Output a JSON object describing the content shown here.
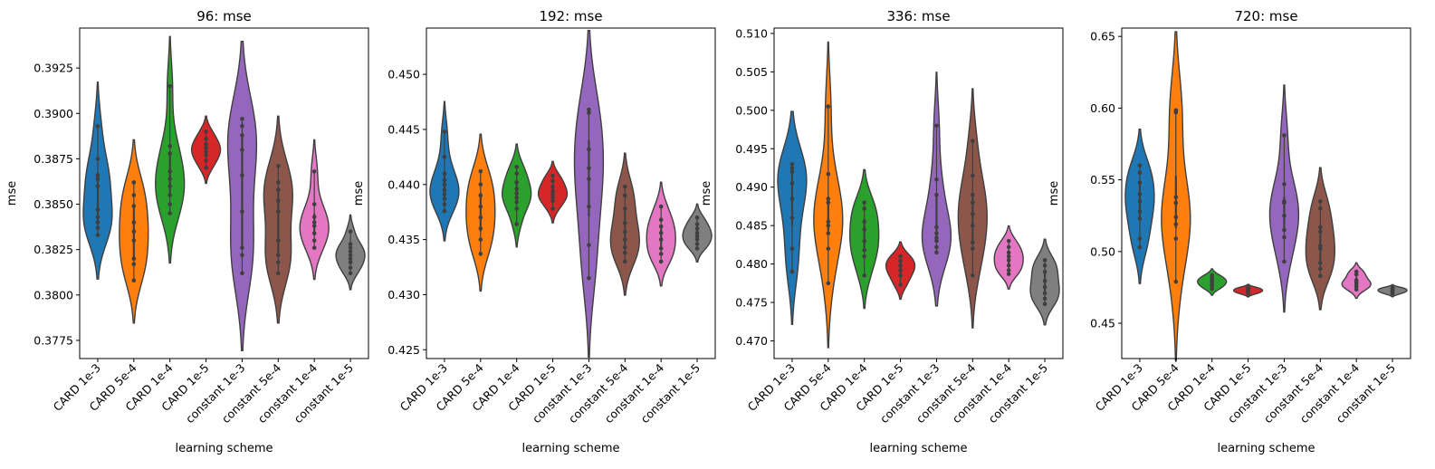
{
  "chart_data": [
    {
      "type": "violin",
      "title": "96: mse",
      "xlabel": "learning scheme",
      "ylabel": "mse",
      "ylim": [
        0.3765,
        0.3947
      ],
      "yticks": [
        0.3775,
        0.38,
        0.3825,
        0.385,
        0.3875,
        0.39,
        0.3925
      ],
      "ytick_labels": [
        "0.3775",
        "0.3800",
        "0.3825",
        "0.3850",
        "0.3875",
        "0.3900",
        "0.3925"
      ],
      "categories": [
        "CARD 1e-3",
        "CARD 5e-4",
        "CARD 1e-4",
        "CARD 1e-5",
        "constant 1e-3",
        "constant 5e-4",
        "constant 1e-4",
        "constant 1e-5"
      ],
      "colors": [
        "#1f77b4",
        "#ff7f0e",
        "#2ca02c",
        "#d62728",
        "#9467bd",
        "#8c564b",
        "#e377c2",
        "#7f7f7f"
      ],
      "series": [
        {
          "name": "CARD 1e-3",
          "points": [
            0.3833,
            0.3837,
            0.384,
            0.3843,
            0.3847,
            0.386,
            0.3864,
            0.3866,
            0.3875,
            0.3893
          ]
        },
        {
          "name": "CARD 5e-4",
          "points": [
            0.3808,
            0.3817,
            0.382,
            0.383,
            0.3835,
            0.384,
            0.3849,
            0.3855,
            0.3862
          ]
        },
        {
          "name": "CARD 1e-4",
          "points": [
            0.3845,
            0.385,
            0.3855,
            0.386,
            0.3864,
            0.3868,
            0.3878,
            0.3882,
            0.3915
          ]
        },
        {
          "name": "CARD 1e-5",
          "points": [
            0.387,
            0.3874,
            0.3877,
            0.3879,
            0.3881,
            0.3883,
            0.3886,
            0.389
          ]
        },
        {
          "name": "constant 1e-3",
          "points": [
            0.3812,
            0.3822,
            0.3826,
            0.3846,
            0.3866,
            0.388,
            0.3888,
            0.3893,
            0.3897
          ]
        },
        {
          "name": "constant 5e-4",
          "points": [
            0.3812,
            0.3818,
            0.3822,
            0.383,
            0.3846,
            0.3852,
            0.3858,
            0.3862,
            0.3871
          ]
        },
        {
          "name": "constant 1e-4",
          "points": [
            0.3826,
            0.383,
            0.3834,
            0.3838,
            0.384,
            0.3843,
            0.385,
            0.3868
          ]
        },
        {
          "name": "constant 1e-5",
          "points": [
            0.3812,
            0.3815,
            0.3818,
            0.382,
            0.3822,
            0.3824,
            0.3826,
            0.3828,
            0.3835
          ]
        }
      ]
    },
    {
      "type": "violin",
      "title": "192: mse",
      "xlabel": "learning scheme",
      "ylabel": "mse",
      "ylim": [
        0.4242,
        0.4542
      ],
      "yticks": [
        0.425,
        0.43,
        0.435,
        0.44,
        0.445,
        0.45
      ],
      "ytick_labels": [
        "0.425",
        "0.430",
        "0.435",
        "0.440",
        "0.445",
        "0.450"
      ],
      "categories": [
        "CARD 1e-3",
        "CARD 5e-4",
        "CARD 1e-4",
        "CARD 1e-5",
        "constant 1e-3",
        "constant 5e-4",
        "constant 1e-4",
        "constant 1e-5"
      ],
      "colors": [
        "#1f77b4",
        "#ff7f0e",
        "#2ca02c",
        "#d62728",
        "#9467bd",
        "#8c564b",
        "#e377c2",
        "#7f7f7f"
      ],
      "series": [
        {
          "name": "CARD 1e-3",
          "points": [
            0.4376,
            0.4382,
            0.4387,
            0.4391,
            0.4395,
            0.44,
            0.4404,
            0.441,
            0.4425,
            0.4448
          ]
        },
        {
          "name": "CARD 5e-4",
          "points": [
            0.4337,
            0.435,
            0.436,
            0.437,
            0.438,
            0.439,
            0.44,
            0.4412
          ]
        },
        {
          "name": "CARD 1e-4",
          "points": [
            0.4364,
            0.4378,
            0.4384,
            0.4388,
            0.4392,
            0.4396,
            0.4402,
            0.441,
            0.4416
          ]
        },
        {
          "name": "CARD 1e-5",
          "points": [
            0.4378,
            0.4385,
            0.4388,
            0.4391,
            0.4394,
            0.4398,
            0.4403,
            0.4408
          ]
        },
        {
          "name": "constant 1e-3",
          "points": [
            0.4315,
            0.4345,
            0.438,
            0.4405,
            0.4415,
            0.4432,
            0.4465,
            0.4468
          ]
        },
        {
          "name": "constant 5e-4",
          "points": [
            0.433,
            0.4338,
            0.4343,
            0.435,
            0.4357,
            0.4365,
            0.4378,
            0.439,
            0.4398
          ]
        },
        {
          "name": "constant 1e-4",
          "points": [
            0.433,
            0.4337,
            0.4342,
            0.435,
            0.4356,
            0.4362,
            0.4368,
            0.438
          ]
        },
        {
          "name": "constant 1e-5",
          "points": [
            0.4342,
            0.4346,
            0.435,
            0.4353,
            0.4356,
            0.436,
            0.4364,
            0.437
          ]
        }
      ]
    },
    {
      "type": "violin",
      "title": "336: mse",
      "xlabel": "learning scheme",
      "ylabel": "mse",
      "ylim": [
        0.4677,
        0.5107
      ],
      "yticks": [
        0.47,
        0.475,
        0.48,
        0.485,
        0.49,
        0.495,
        0.5,
        0.505,
        0.51
      ],
      "ytick_labels": [
        "0.470",
        "0.475",
        "0.480",
        "0.485",
        "0.490",
        "0.495",
        "0.500",
        "0.505",
        "0.510"
      ],
      "categories": [
        "CARD 1e-3",
        "CARD 5e-4",
        "CARD 1e-4",
        "CARD 1e-5",
        "constant 1e-3",
        "constant 5e-4",
        "constant 1e-4",
        "constant 1e-5"
      ],
      "colors": [
        "#1f77b4",
        "#ff7f0e",
        "#2ca02c",
        "#d62728",
        "#9467bd",
        "#8c564b",
        "#e377c2",
        "#7f7f7f"
      ],
      "series": [
        {
          "name": "CARD 1e-3",
          "points": [
            0.479,
            0.482,
            0.486,
            0.4885,
            0.4905,
            0.492,
            0.4925,
            0.493
          ]
        },
        {
          "name": "CARD 5e-4",
          "points": [
            0.4775,
            0.482,
            0.484,
            0.485,
            0.4855,
            0.488,
            0.4885,
            0.4917,
            0.5005
          ]
        },
        {
          "name": "CARD 1e-4",
          "points": [
            0.4785,
            0.481,
            0.4818,
            0.483,
            0.4845,
            0.4855,
            0.4872,
            0.488
          ]
        },
        {
          "name": "CARD 1e-5",
          "points": [
            0.4773,
            0.4785,
            0.4792,
            0.4798,
            0.4804,
            0.481
          ]
        },
        {
          "name": "constant 1e-3",
          "points": [
            0.4815,
            0.4822,
            0.483,
            0.4834,
            0.484,
            0.4848,
            0.489,
            0.491,
            0.498
          ]
        },
        {
          "name": "constant 5e-4",
          "points": [
            0.4785,
            0.482,
            0.4828,
            0.485,
            0.4865,
            0.488,
            0.489,
            0.4915,
            0.496
          ]
        },
        {
          "name": "constant 1e-4",
          "points": [
            0.4787,
            0.4792,
            0.4798,
            0.4805,
            0.481,
            0.4815,
            0.4822,
            0.483
          ]
        },
        {
          "name": "constant 1e-5",
          "points": [
            0.4748,
            0.4755,
            0.4762,
            0.477,
            0.4778,
            0.479,
            0.4798,
            0.4805
          ]
        }
      ]
    },
    {
      "type": "violin",
      "title": "720: mse",
      "xlabel": "learning scheme",
      "ylabel": "mse",
      "ylim": [
        0.4254,
        0.6558
      ],
      "yticks": [
        0.45,
        0.5,
        0.55,
        0.6,
        0.65
      ],
      "ytick_labels": [
        "0.45",
        "0.50",
        "0.55",
        "0.60",
        "0.65"
      ],
      "categories": [
        "CARD 1e-3",
        "CARD 5e-4",
        "CARD 1e-4",
        "CARD 1e-5",
        "constant 1e-3",
        "constant 5e-4",
        "constant 1e-4",
        "constant 1e-5"
      ],
      "colors": [
        "#1f77b4",
        "#ff7f0e",
        "#2ca02c",
        "#d62728",
        "#9467bd",
        "#8c564b",
        "#e377c2",
        "#7f7f7f"
      ],
      "series": [
        {
          "name": "CARD 1e-3",
          "points": [
            0.503,
            0.509,
            0.523,
            0.528,
            0.535,
            0.54,
            0.548,
            0.555,
            0.56
          ]
        },
        {
          "name": "CARD 5e-4",
          "points": [
            0.479,
            0.509,
            0.519,
            0.524,
            0.534,
            0.538,
            0.597,
            0.5985
          ]
        },
        {
          "name": "CARD 1e-4",
          "points": [
            0.474,
            0.476,
            0.4775,
            0.479,
            0.48,
            0.4815,
            0.4835
          ]
        },
        {
          "name": "CARD 1e-5",
          "points": [
            0.4705,
            0.4715,
            0.4722,
            0.4728,
            0.4735,
            0.4742,
            0.475
          ]
        },
        {
          "name": "constant 1e-3",
          "points": [
            0.493,
            0.51,
            0.515,
            0.525,
            0.534,
            0.535,
            0.547,
            0.581
          ]
        },
        {
          "name": "constant 5e-4",
          "points": [
            0.483,
            0.488,
            0.492,
            0.502,
            0.504,
            0.514,
            0.517,
            0.53,
            0.535
          ]
        },
        {
          "name": "constant 1e-4",
          "points": [
            0.4735,
            0.4755,
            0.477,
            0.4785,
            0.48,
            0.484,
            0.486
          ]
        },
        {
          "name": "constant 1e-5",
          "points": [
            0.4705,
            0.4715,
            0.4722,
            0.4728,
            0.4735,
            0.4742,
            0.4748
          ]
        }
      ]
    }
  ]
}
